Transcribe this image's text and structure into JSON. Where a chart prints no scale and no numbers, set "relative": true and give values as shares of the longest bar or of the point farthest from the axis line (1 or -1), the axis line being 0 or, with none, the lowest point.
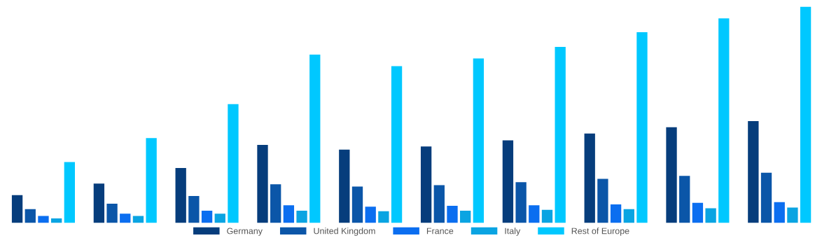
{
  "chart_data": {
    "type": "bar",
    "relative": true,
    "categories": [
      null,
      null,
      null,
      null,
      null,
      null,
      null,
      null,
      null,
      null
    ],
    "series": [
      {
        "name": "Germany",
        "color": "#063d7c",
        "values": [
          0.129,
          0.182,
          0.254,
          0.361,
          0.339,
          0.354,
          0.382,
          0.414,
          0.443,
          0.471
        ]
      },
      {
        "name": "United Kingdom",
        "color": "#0b56a8",
        "values": [
          0.064,
          0.089,
          0.125,
          0.179,
          0.168,
          0.175,
          0.189,
          0.204,
          0.218,
          0.232
        ]
      },
      {
        "name": "France",
        "color": "#0b6ef0",
        "values": [
          0.032,
          0.043,
          0.057,
          0.082,
          0.075,
          0.079,
          0.082,
          0.086,
          0.093,
          0.096
        ]
      },
      {
        "name": "Italy",
        "color": "#0aa4e2",
        "values": [
          0.021,
          0.032,
          0.043,
          0.057,
          0.054,
          0.057,
          0.061,
          0.064,
          0.068,
          0.071
        ]
      },
      {
        "name": "Rest of Europe",
        "color": "#00c8ff",
        "values": [
          0.282,
          0.393,
          0.55,
          0.779,
          0.725,
          0.761,
          0.814,
          0.882,
          0.946,
          1
        ]
      }
    ],
    "legend": "bottom",
    "grid": false
  }
}
